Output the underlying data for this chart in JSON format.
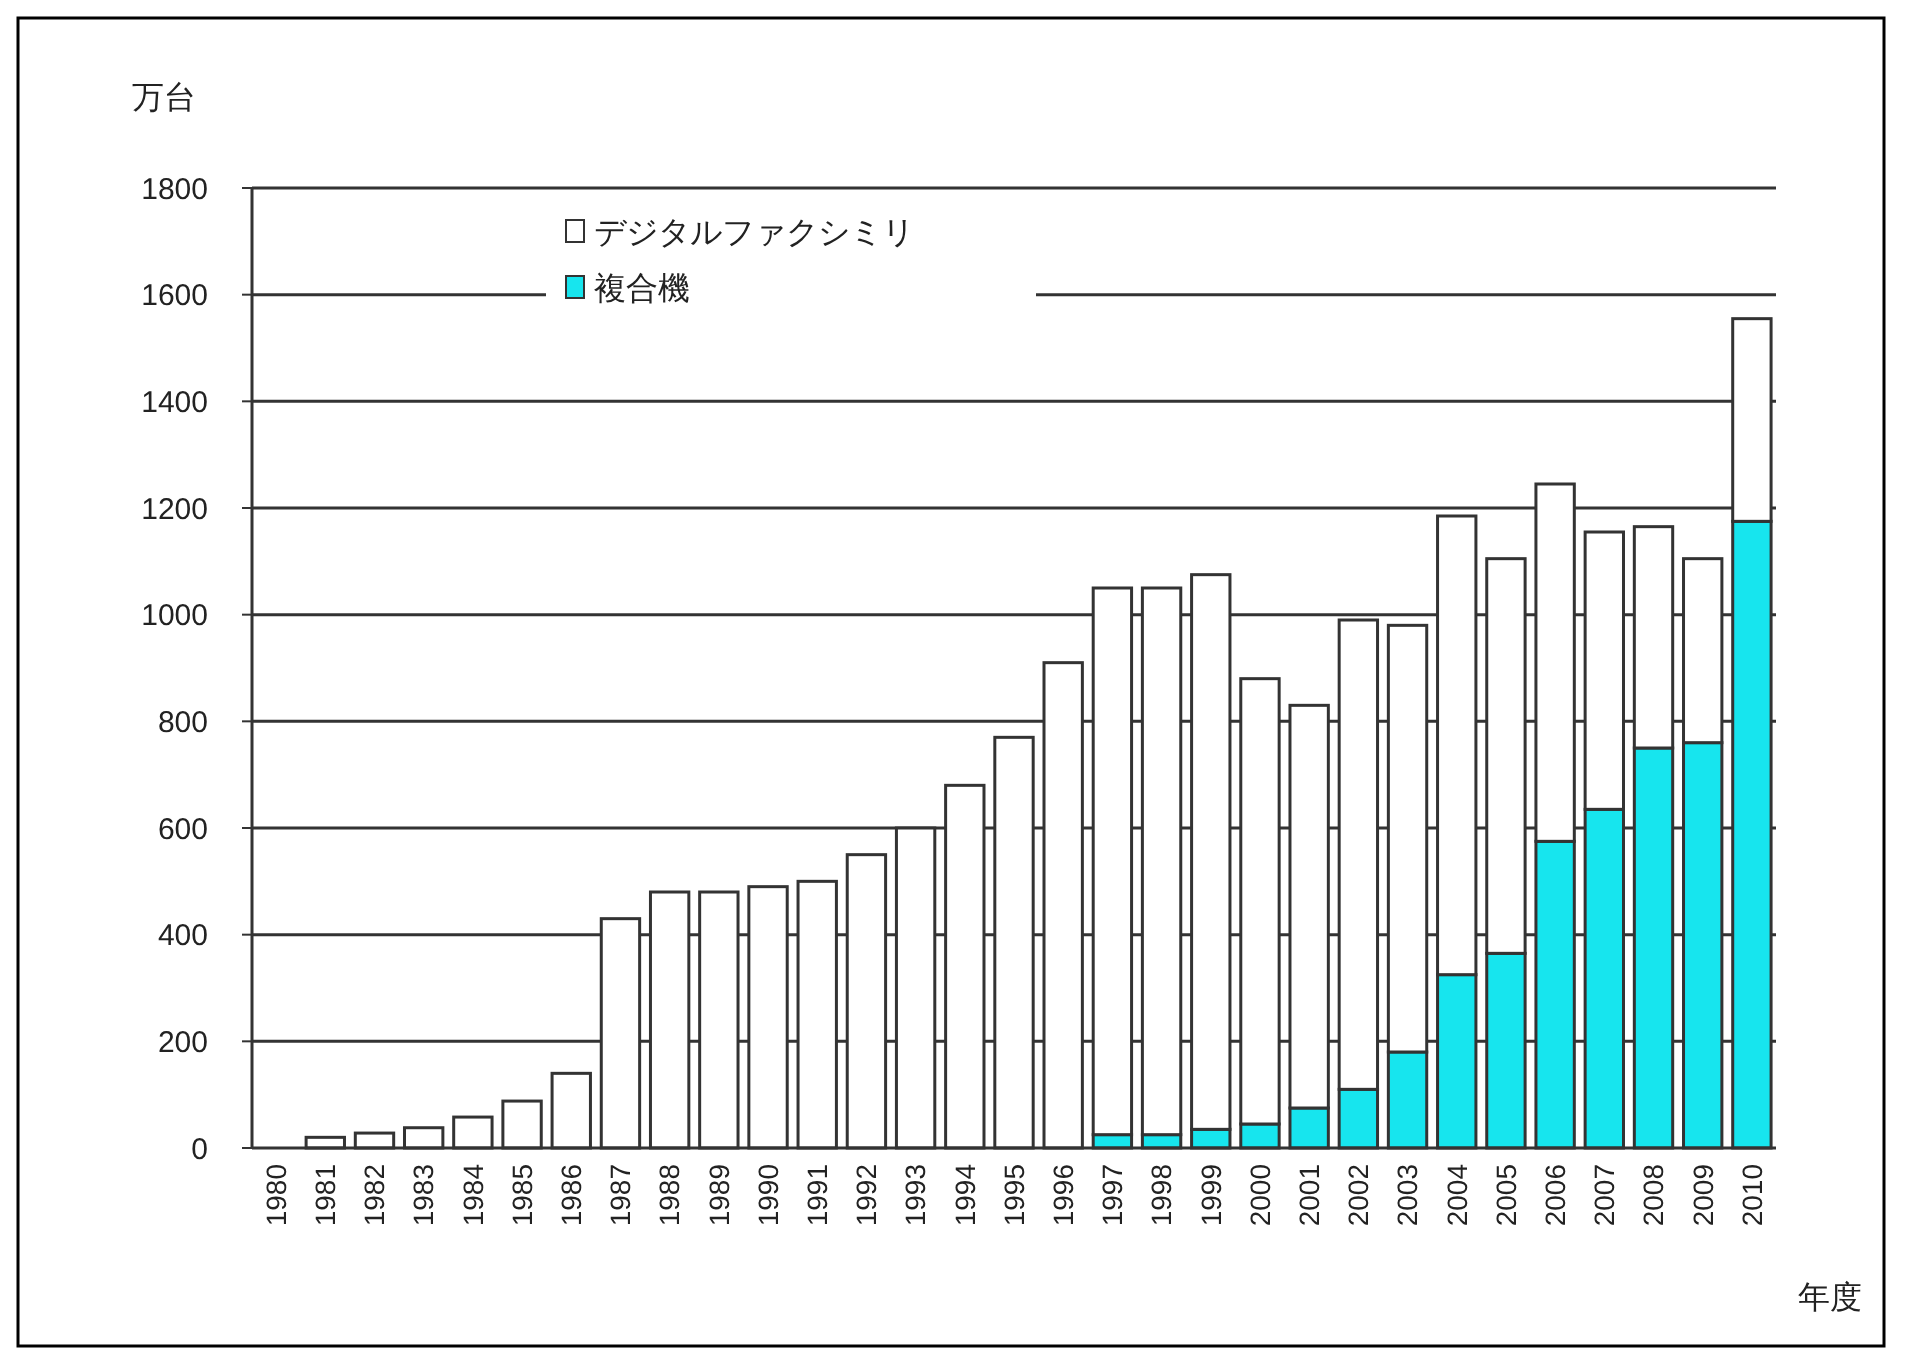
{
  "chart_data": {
    "type": "bar",
    "stacked": true,
    "xlabel": "年度",
    "ylabel": "万台",
    "categories": [
      "1980",
      "1981",
      "1982",
      "1983",
      "1984",
      "1985",
      "1986",
      "1987",
      "1988",
      "1989",
      "1990",
      "1991",
      "1992",
      "1993",
      "1994",
      "1995",
      "1996",
      "1997",
      "1998",
      "1999",
      "2000",
      "2001",
      "2002",
      "2003",
      "2004",
      "2005",
      "2006",
      "2007",
      "2008",
      "2009",
      "2010"
    ],
    "series": [
      {
        "name": "複合機",
        "color": "#17e5ee",
        "values": [
          0,
          0,
          0,
          0,
          0,
          0,
          0,
          0,
          0,
          0,
          0,
          0,
          0,
          0,
          0,
          0,
          0,
          25,
          25,
          35,
          45,
          75,
          110,
          180,
          325,
          365,
          575,
          635,
          750,
          760,
          1175
        ]
      },
      {
        "name": "デジタルファクシミリ",
        "color": "#ffffff",
        "values": [
          0,
          20,
          28,
          38,
          58,
          88,
          140,
          430,
          480,
          480,
          490,
          500,
          550,
          600,
          680,
          770,
          910,
          1025,
          1025,
          1040,
          835,
          755,
          880,
          800,
          860,
          740,
          670,
          520,
          415,
          345,
          380
        ]
      }
    ],
    "ylim": [
      0,
      1800
    ],
    "yticks": [
      0,
      200,
      400,
      600,
      800,
      1000,
      1200,
      1400,
      1600,
      1800
    ],
    "grid": "y",
    "legend": "top"
  }
}
